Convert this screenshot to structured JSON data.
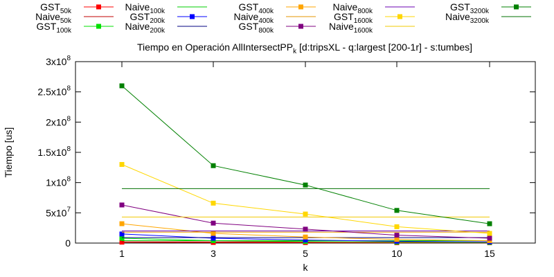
{
  "chart_data": {
    "type": "line",
    "title": {
      "pre": "Tiempo en Operación AllIntersectPP",
      "sub": "k",
      "post": " [d:tripsXL - q:largest [200-1r] - s:tumbes]"
    },
    "xlabel": "k",
    "ylabel": "Tiempo [us]",
    "categories": [
      "1",
      "3",
      "5",
      "10",
      "15"
    ],
    "ylim": [
      0,
      300000000
    ],
    "yticks": [
      {
        "value": 0,
        "base": "0",
        "exp": ""
      },
      {
        "value": 50000000,
        "base": "5x10",
        "exp": "7"
      },
      {
        "value": 100000000,
        "base": "1x10",
        "exp": "8"
      },
      {
        "value": 150000000,
        "base": "1.5x10",
        "exp": "8"
      },
      {
        "value": 200000000,
        "base": "2x10",
        "exp": "8"
      },
      {
        "value": 250000000,
        "base": "2.5x10",
        "exp": "8"
      },
      {
        "value": 300000000,
        "base": "3x10",
        "exp": "8"
      }
    ],
    "grid": false,
    "legend_position": "top",
    "series": [
      {
        "name": "GST",
        "sub": "50k",
        "color": "#ff0000",
        "marker": true,
        "values": [
          1500000,
          1000000,
          800000,
          600000,
          500000
        ]
      },
      {
        "name": "Naive",
        "sub": "50k",
        "color": "#c00000",
        "marker": false,
        "values": [
          2000000,
          2000000,
          2000000,
          2000000,
          2000000
        ]
      },
      {
        "name": "GST",
        "sub": "100k",
        "color": "#00e000",
        "marker": true,
        "values": [
          8000000,
          4000000,
          2500000,
          1500000,
          1000000
        ]
      },
      {
        "name": "Naive",
        "sub": "100k",
        "color": "#00cc00",
        "marker": false,
        "values": [
          4000000,
          4000000,
          4000000,
          4000000,
          4000000
        ]
      },
      {
        "name": "GST",
        "sub": "200k",
        "color": "#0000ff",
        "marker": true,
        "values": [
          15000000,
          8000000,
          5000000,
          3000000,
          2000000
        ]
      },
      {
        "name": "Naive",
        "sub": "200k",
        "color": "#000080",
        "marker": false,
        "values": [
          9000000,
          9000000,
          9000000,
          9000000,
          9000000
        ]
      },
      {
        "name": "GST",
        "sub": "400k",
        "color": "#ffa500",
        "marker": true,
        "values": [
          32000000,
          16000000,
          10000000,
          6000000,
          4000000
        ]
      },
      {
        "name": "Naive",
        "sub": "400k",
        "color": "#e69500",
        "marker": false,
        "values": [
          18000000,
          18000000,
          18000000,
          18000000,
          18000000
        ]
      },
      {
        "name": "GST",
        "sub": "800k",
        "color": "#800080",
        "marker": true,
        "values": [
          63000000,
          33000000,
          23000000,
          13000000,
          8000000
        ]
      },
      {
        "name": "Naive",
        "sub": "800k",
        "color": "#6a00b0",
        "marker": false,
        "values": [
          20000000,
          20000000,
          20000000,
          20000000,
          20000000
        ]
      },
      {
        "name": "GST",
        "sub": "1600k",
        "color": "#ffd700",
        "marker": true,
        "values": [
          130000000,
          66000000,
          48000000,
          27000000,
          16000000
        ]
      },
      {
        "name": "Naive",
        "sub": "1600k",
        "color": "#f0c800",
        "marker": false,
        "values": [
          43000000,
          43000000,
          43000000,
          43000000,
          43000000
        ]
      },
      {
        "name": "GST",
        "sub": "3200k",
        "color": "#008000",
        "marker": true,
        "values": [
          260000000,
          128000000,
          96000000,
          54000000,
          32000000
        ]
      },
      {
        "name": "Naive",
        "sub": "3200k",
        "color": "#007000",
        "marker": false,
        "values": [
          90000000,
          90000000,
          90000000,
          90000000,
          90000000
        ]
      }
    ]
  }
}
